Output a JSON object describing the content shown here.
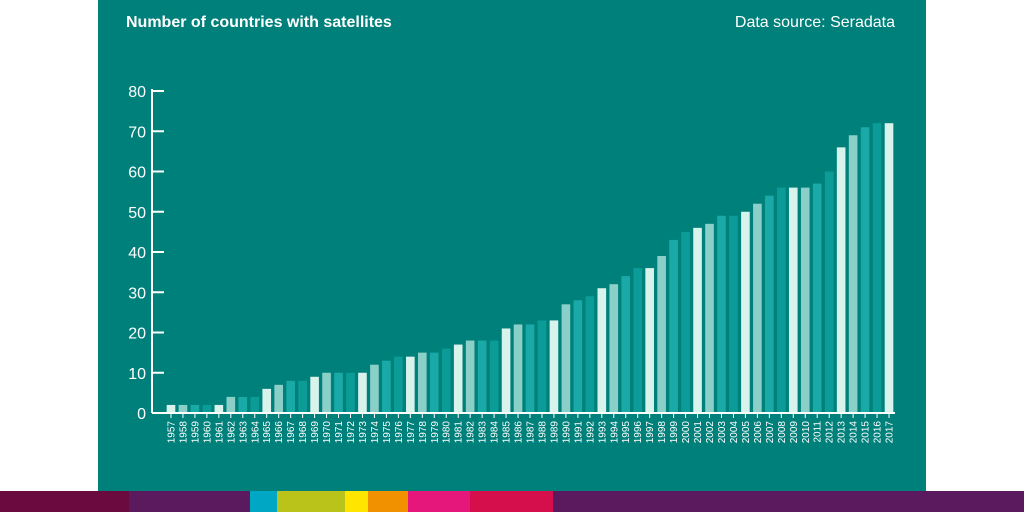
{
  "header": {
    "title": "Number of countries with satellites",
    "source": "Data source: Seradata"
  },
  "colors": {
    "background": "#00807a",
    "axis": "#ffffff",
    "bar_palette": [
      "#d8f2ec",
      "#8ad0c8",
      "#19aaa8",
      "#0c9c98"
    ]
  },
  "strip_colors": [
    "#6b0a3e",
    "#5c1a5e",
    "#00a7c4",
    "#b9c31a",
    "#ffe500",
    "#f29100",
    "#e6177b",
    "#d50f4c",
    "#5c1a5e"
  ],
  "chart_data": {
    "type": "bar",
    "title": "Number of countries with satellites",
    "xlabel": "",
    "ylabel": "",
    "ylim": [
      0,
      80
    ],
    "yticks": [
      0,
      10,
      20,
      30,
      40,
      50,
      60,
      70,
      80
    ],
    "grid": false,
    "categories": [
      "1957",
      "1958",
      "1959",
      "1960",
      "1961",
      "1962",
      "1963",
      "1964",
      "1965",
      "1966",
      "1967",
      "1968",
      "1969",
      "1970",
      "1971",
      "1972",
      "1973",
      "1974",
      "1975",
      "1976",
      "1977",
      "1978",
      "1979",
      "1980",
      "1981",
      "1982",
      "1983",
      "1984",
      "1985",
      "1986",
      "1987",
      "1988",
      "1989",
      "1990",
      "1991",
      "1992",
      "1993",
      "1994",
      "1995",
      "1996",
      "1997",
      "1998",
      "1999",
      "2000",
      "2001",
      "2002",
      "2003",
      "2004",
      "2005",
      "2006",
      "2007",
      "2008",
      "2009",
      "2010",
      "2011",
      "2012",
      "2013",
      "2014",
      "2015",
      "2016",
      "2017"
    ],
    "values": [
      2,
      2,
      2,
      2,
      2,
      4,
      4,
      4,
      6,
      7,
      8,
      8,
      9,
      10,
      10,
      10,
      10,
      12,
      13,
      14,
      14,
      15,
      15,
      16,
      17,
      18,
      18,
      18,
      21,
      22,
      22,
      23,
      23,
      27,
      28,
      29,
      31,
      32,
      34,
      36,
      36,
      39,
      43,
      45,
      46,
      47,
      49,
      49,
      50,
      52,
      54,
      56,
      56,
      56,
      57,
      60,
      66,
      69,
      71,
      72,
      72
    ]
  }
}
